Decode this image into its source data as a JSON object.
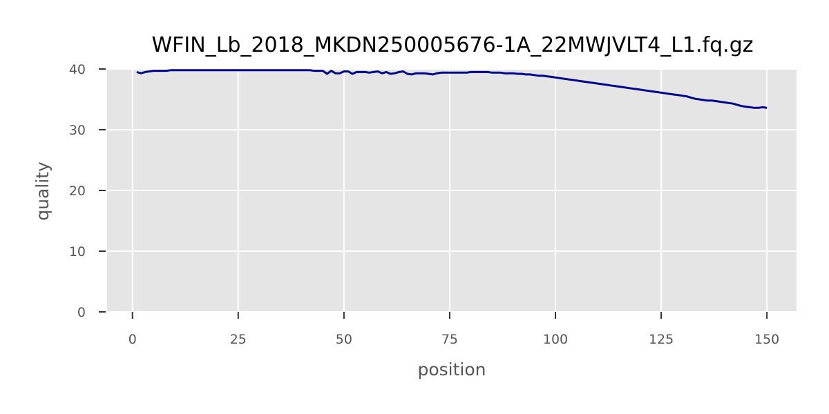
{
  "chart_data": {
    "type": "line",
    "title": "WFIN_Lb_2018_MKDN250005676-1A_22MWJVLT4_L1.fq.gz",
    "xlabel": "position",
    "ylabel": "quality",
    "xlim": [
      -6,
      157
    ],
    "ylim": [
      0,
      40
    ],
    "x_ticks": [
      0,
      25,
      50,
      75,
      100,
      125,
      150
    ],
    "y_ticks": [
      0,
      10,
      20,
      30,
      40
    ],
    "grid": true,
    "legend": "none",
    "colors": {
      "line": "#00008b",
      "panel": "#e5e5e5",
      "grid": "#ffffff",
      "text": "#555555"
    },
    "series": [
      {
        "x": [
          1,
          2,
          3,
          4,
          5,
          6,
          7,
          8,
          9,
          10,
          11,
          12,
          13,
          14,
          15,
          16,
          17,
          18,
          19,
          20,
          21,
          22,
          23,
          24,
          25,
          26,
          27,
          28,
          29,
          30,
          31,
          32,
          33,
          34,
          35,
          36,
          37,
          38,
          39,
          40,
          41,
          42,
          43,
          44,
          45,
          46,
          47,
          48,
          49,
          50,
          51,
          52,
          53,
          54,
          55,
          56,
          57,
          58,
          59,
          60,
          61,
          62,
          63,
          64,
          65,
          66,
          67,
          68,
          69,
          70,
          71,
          72,
          73,
          74,
          75,
          76,
          77,
          78,
          79,
          80,
          81,
          82,
          83,
          84,
          85,
          86,
          87,
          88,
          89,
          90,
          91,
          92,
          93,
          94,
          95,
          96,
          97,
          98,
          99,
          100,
          101,
          102,
          103,
          104,
          105,
          106,
          107,
          108,
          109,
          110,
          111,
          112,
          113,
          114,
          115,
          116,
          117,
          118,
          119,
          120,
          121,
          122,
          123,
          124,
          125,
          126,
          127,
          128,
          129,
          130,
          131,
          132,
          133,
          134,
          135,
          136,
          137,
          138,
          139,
          140,
          141,
          142,
          143,
          144,
          145,
          146,
          147,
          148,
          149,
          150
        ],
        "y": [
          39.5,
          39.3,
          39.5,
          39.6,
          39.7,
          39.7,
          39.7,
          39.7,
          39.8,
          39.8,
          39.8,
          39.8,
          39.8,
          39.8,
          39.8,
          39.8,
          39.8,
          39.8,
          39.8,
          39.8,
          39.8,
          39.8,
          39.8,
          39.8,
          39.8,
          39.8,
          39.8,
          39.8,
          39.8,
          39.8,
          39.8,
          39.8,
          39.8,
          39.8,
          39.8,
          39.8,
          39.8,
          39.8,
          39.8,
          39.8,
          39.8,
          39.8,
          39.7,
          39.7,
          39.7,
          39.2,
          39.7,
          39.3,
          39.3,
          39.6,
          39.6,
          39.2,
          39.5,
          39.5,
          39.5,
          39.4,
          39.5,
          39.6,
          39.3,
          39.5,
          39.2,
          39.3,
          39.5,
          39.6,
          39.2,
          39.1,
          39.3,
          39.3,
          39.3,
          39.2,
          39.1,
          39.3,
          39.4,
          39.4,
          39.4,
          39.4,
          39.4,
          39.4,
          39.4,
          39.5,
          39.5,
          39.5,
          39.5,
          39.5,
          39.4,
          39.4,
          39.4,
          39.3,
          39.3,
          39.3,
          39.2,
          39.2,
          39.1,
          39.1,
          39.0,
          38.9,
          38.9,
          38.8,
          38.7,
          38.6,
          38.5,
          38.4,
          38.3,
          38.2,
          38.1,
          38.0,
          37.9,
          37.8,
          37.7,
          37.6,
          37.5,
          37.4,
          37.3,
          37.2,
          37.1,
          37.0,
          36.9,
          36.8,
          36.7,
          36.6,
          36.5,
          36.4,
          36.3,
          36.2,
          36.1,
          36.0,
          35.9,
          35.8,
          35.7,
          35.6,
          35.5,
          35.3,
          35.1,
          35.0,
          34.9,
          34.8,
          34.8,
          34.7,
          34.6,
          34.5,
          34.4,
          34.3,
          34.1,
          33.9,
          33.8,
          33.7,
          33.6,
          33.6,
          33.7,
          33.6
        ]
      }
    ]
  }
}
